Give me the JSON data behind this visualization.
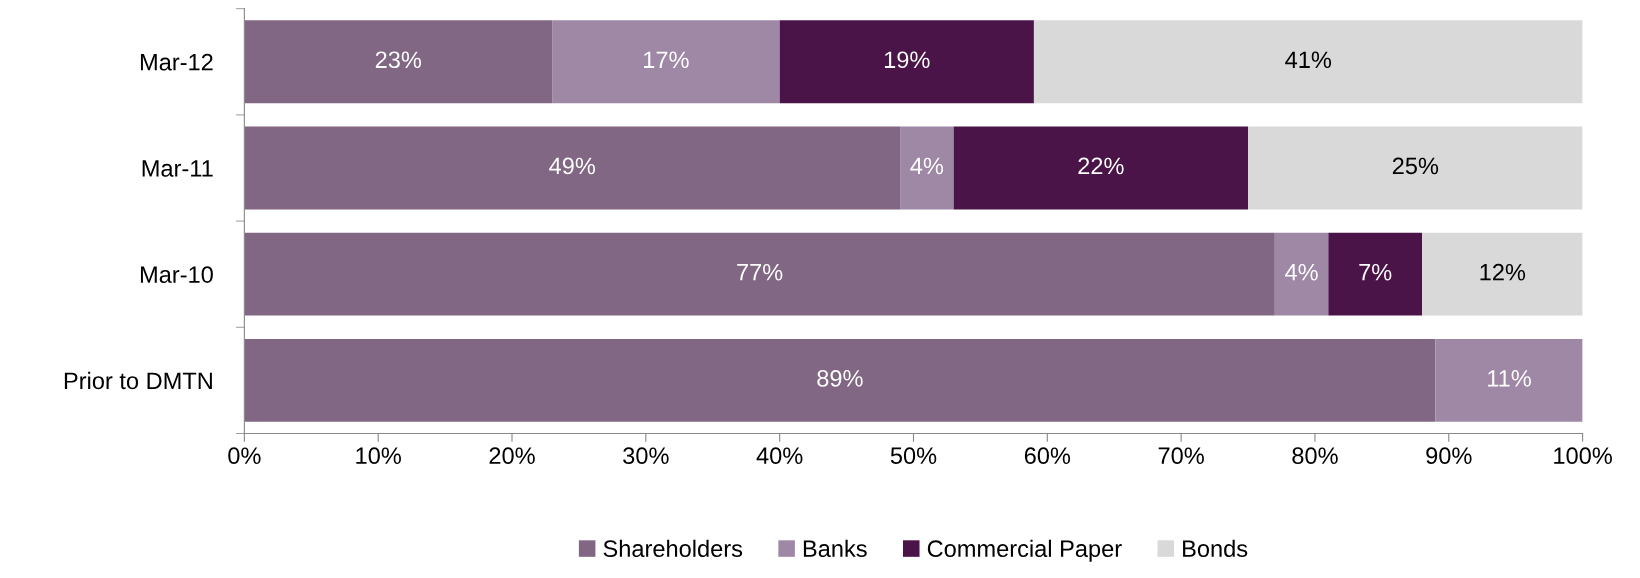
{
  "chart_data": {
    "type": "bar",
    "orientation": "horizontal",
    "stacked": true,
    "categories": [
      "Mar-12",
      "Mar-11",
      "Mar-10",
      "Prior to DMTN"
    ],
    "series": [
      {
        "name": "Shareholders",
        "color": "#816783",
        "values": [
          23,
          49,
          77,
          89
        ],
        "value_labels": [
          "23%",
          "49%",
          "77%",
          "89%"
        ]
      },
      {
        "name": "Banks",
        "color": "#9e88a6",
        "values": [
          17,
          4,
          4,
          11
        ],
        "value_labels": [
          "17%",
          "4%",
          "4%",
          "11%"
        ]
      },
      {
        "name": "Commercial Paper",
        "color": "#4a1448",
        "values": [
          19,
          22,
          7,
          null
        ],
        "value_labels": [
          "19%",
          "22%",
          "7%",
          null
        ]
      },
      {
        "name": "Bonds",
        "color": "#d9d9d9",
        "values": [
          41,
          25,
          12,
          null
        ],
        "value_labels": [
          "41%",
          "25%",
          "12%",
          null
        ]
      }
    ],
    "xlim": [
      0,
      100
    ],
    "xticks": [
      {
        "value": 0,
        "label": "0%"
      },
      {
        "value": 10,
        "label": "10%"
      },
      {
        "value": 20,
        "label": "20%"
      },
      {
        "value": 30,
        "label": "30%"
      },
      {
        "value": 40,
        "label": "40%"
      },
      {
        "value": 50,
        "label": "50%"
      },
      {
        "value": 60,
        "label": "60%"
      },
      {
        "value": 70,
        "label": "70%"
      },
      {
        "value": 80,
        "label": "80%"
      },
      {
        "value": 90,
        "label": "90%"
      },
      {
        "value": 100,
        "label": "100%"
      }
    ],
    "grid": false,
    "legend": "bottom"
  }
}
